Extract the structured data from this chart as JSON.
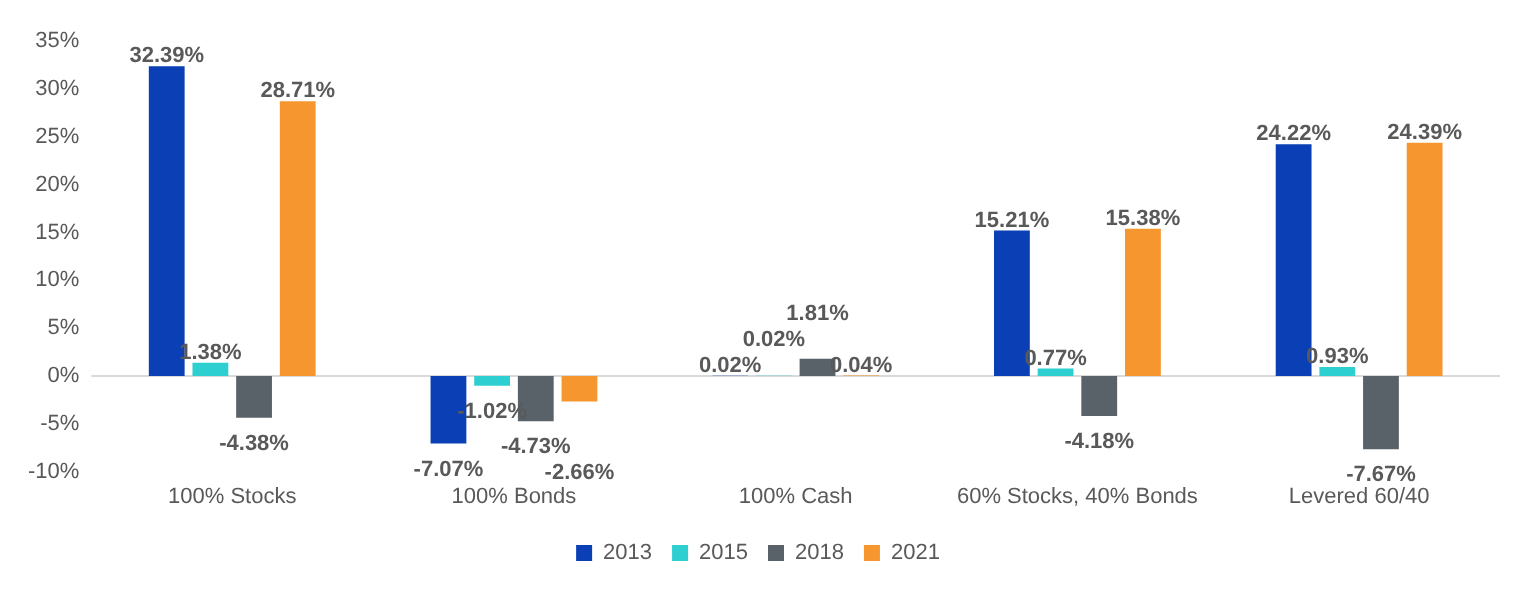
{
  "chart_data": {
    "type": "bar",
    "categories": [
      "100% Stocks",
      "100% Bonds",
      "100% Cash",
      "60% Stocks, 40% Bonds",
      "Levered 60/40"
    ],
    "series": [
      {
        "name": "2013",
        "color": "#0a3fb5",
        "values": [
          32.39,
          -7.07,
          0.02,
          15.21,
          24.22
        ],
        "value_labels": [
          "32.39%",
          "-7.07%",
          "0.02%",
          "15.21%",
          "24.22%"
        ]
      },
      {
        "name": "2015",
        "color": "#2ecfd0",
        "values": [
          1.38,
          -1.02,
          0.02,
          0.77,
          0.93
        ],
        "value_labels": [
          "1.38%",
          "-1.02%",
          "0.02%",
          "0.77%",
          "0.93%"
        ]
      },
      {
        "name": "2018",
        "color": "#5a6269",
        "values": [
          -4.38,
          -4.73,
          1.81,
          -4.18,
          -7.67
        ],
        "value_labels": [
          "-4.38%",
          "-4.73%",
          "1.81%",
          "-4.18%",
          "-7.67%"
        ]
      },
      {
        "name": "2021",
        "color": "#f5962f",
        "values": [
          28.71,
          -2.66,
          0.04,
          15.38,
          24.39
        ],
        "value_labels": [
          "28.71%",
          "-2.66%",
          "0.04%",
          "15.38%",
          "24.39%"
        ]
      }
    ],
    "ylim": [
      -10,
      35
    ],
    "yticks": [
      {
        "value": -10,
        "label": "-10%"
      },
      {
        "value": -5,
        "label": "-5%"
      },
      {
        "value": 0,
        "label": "0%"
      },
      {
        "value": 5,
        "label": "5%"
      },
      {
        "value": 10,
        "label": "10%"
      },
      {
        "value": 15,
        "label": "15%"
      },
      {
        "value": 20,
        "label": "20%"
      },
      {
        "value": 25,
        "label": "25%"
      },
      {
        "value": 30,
        "label": "30%"
      },
      {
        "value": 35,
        "label": "35%"
      }
    ],
    "ref_lines": [
      {
        "axis": "y",
        "value": 0,
        "color": "#d9d9d9"
      }
    ],
    "legend": "bottom"
  }
}
